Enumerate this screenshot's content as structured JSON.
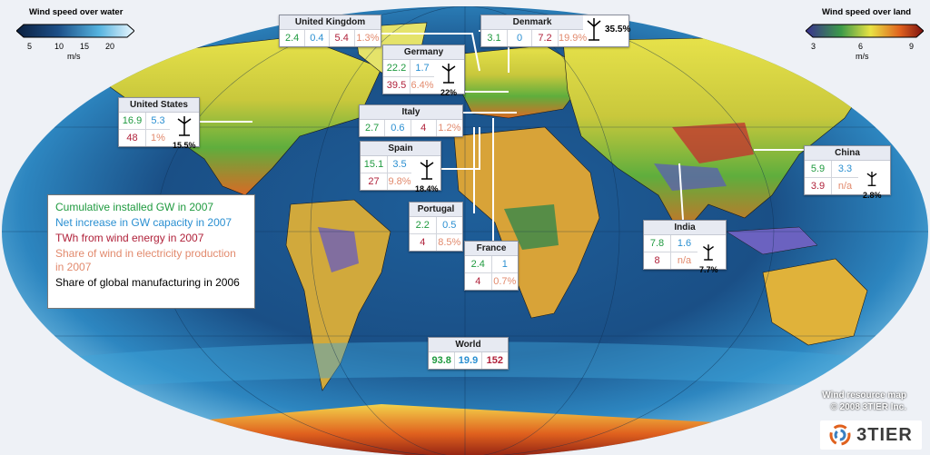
{
  "water_scale": {
    "title": "Wind speed over water",
    "ticks": [
      "5",
      "10",
      "15",
      "20"
    ],
    "unit": "m/s"
  },
  "land_scale": {
    "title": "Wind speed over land",
    "ticks": [
      "3",
      "6",
      "9"
    ],
    "unit": "m/s"
  },
  "legend": {
    "cumulative": "Cumulative installed GW in 2007",
    "net_increase": "Net increase in GW capacity in 2007",
    "twh": "TWh from wind energy in 2007",
    "share_elec": "Share of wind in electricity production in 2007",
    "share_mfg": "Share of global manufacturing in 2006"
  },
  "colors": {
    "cumulative": "#1f9a3f",
    "net_increase": "#2a8fd1",
    "twh": "#b0213a",
    "share_elec": "#e28a6d",
    "share_mfg": "#000000"
  },
  "countries": {
    "uk": {
      "name": "United Kingdom",
      "cum": "2.4",
      "net": "0.4",
      "twh": "5.4",
      "share": "1.3%"
    },
    "denmark": {
      "name": "Denmark",
      "cum": "3.1",
      "net": "0",
      "twh": "7.2",
      "share": "19.9%",
      "mfg": "35.5%"
    },
    "germany": {
      "name": "Germany",
      "cum": "22.2",
      "net": "1.7",
      "twh": "39.5",
      "share": "6.4%",
      "mfg": "22%"
    },
    "us": {
      "name": "United States",
      "cum": "16.9",
      "net": "5.3",
      "twh": "48",
      "share": "1%",
      "mfg": "15.5%"
    },
    "italy": {
      "name": "Italy",
      "cum": "2.7",
      "net": "0.6",
      "twh": "4",
      "share": "1.2%"
    },
    "spain": {
      "name": "Spain",
      "cum": "15.1",
      "net": "3.5",
      "twh": "27",
      "share": "9.8%",
      "mfg": "18.4%"
    },
    "portugal": {
      "name": "Portugal",
      "cum": "2.2",
      "net": "0.5",
      "twh": "4",
      "share": "8.5%"
    },
    "france": {
      "name": "France",
      "cum": "2.4",
      "net": "1",
      "twh": "4",
      "share": "0.7%"
    },
    "china": {
      "name": "China",
      "cum": "5.9",
      "net": "3.3",
      "twh": "3.9",
      "share": "n/a",
      "mfg": "2.8%"
    },
    "india": {
      "name": "India",
      "cum": "7.8",
      "net": "1.6",
      "twh": "8",
      "share": "n/a",
      "mfg": "7.7%"
    },
    "world": {
      "name": "World",
      "cum": "93.8",
      "net": "19.9",
      "twh": "152"
    }
  },
  "credit": {
    "line1": "Wind resource map",
    "line2": "© 2008 3TIER Inc."
  },
  "logo": {
    "text": "3TIER"
  }
}
